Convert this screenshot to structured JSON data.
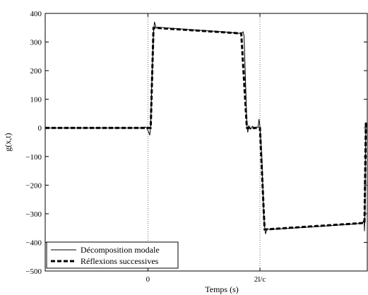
{
  "chart_data": {
    "type": "line",
    "xlabel": "Temps (s)",
    "ylabel": "g(x,t)",
    "ylim": [
      -500,
      400
    ],
    "xlim": [
      -1.1,
      2.35
    ],
    "y_ticks": [
      400,
      300,
      200,
      100,
      0,
      -100,
      -200,
      -300,
      -400,
      -500
    ],
    "y_tick_labels": [
      "400",
      "300",
      "200",
      "100",
      "0",
      "−100",
      "−200",
      "−300",
      "−400",
      "−500"
    ],
    "x_ticks": [
      {
        "value": 0,
        "label": "0"
      },
      {
        "value": 1.2,
        "label": "2l/c"
      }
    ],
    "vertical_dotted_lines_at": [
      0,
      1.2
    ],
    "grid": false,
    "legend_position": "bottom-left",
    "series": [
      {
        "name": "Décomposition modale",
        "style": "solid",
        "color": "#000000",
        "points": [
          [
            -1.1,
            0
          ],
          [
            -0.5,
            0
          ],
          [
            -0.05,
            0
          ],
          [
            -0.02,
            3
          ],
          [
            0.0,
            -8
          ],
          [
            0.02,
            -25
          ],
          [
            0.03,
            5
          ],
          [
            0.04,
            140
          ],
          [
            0.06,
            330
          ],
          [
            0.07,
            370
          ],
          [
            0.08,
            360
          ],
          [
            0.09,
            348
          ],
          [
            0.1,
            352
          ],
          [
            0.5,
            342
          ],
          [
            0.8,
            336
          ],
          [
            1.0,
            330
          ],
          [
            1.02,
            336
          ],
          [
            1.03,
            320
          ],
          [
            1.05,
            120
          ],
          [
            1.06,
            10
          ],
          [
            1.07,
            -15
          ],
          [
            1.08,
            8
          ],
          [
            1.1,
            -5
          ],
          [
            1.12,
            6
          ],
          [
            1.14,
            -4
          ],
          [
            1.16,
            3
          ],
          [
            1.18,
            2
          ],
          [
            1.19,
            30
          ],
          [
            1.2,
            5
          ],
          [
            1.22,
            -100
          ],
          [
            1.24,
            -300
          ],
          [
            1.25,
            -345
          ],
          [
            1.26,
            -370
          ],
          [
            1.27,
            -360
          ],
          [
            1.28,
            -352
          ],
          [
            1.3,
            -355
          ],
          [
            1.8,
            -345
          ],
          [
            2.2,
            -336
          ],
          [
            2.3,
            -333
          ],
          [
            2.315,
            -320
          ],
          [
            2.32,
            -360
          ],
          [
            2.325,
            -300
          ],
          [
            2.33,
            -100
          ],
          [
            2.335,
            20
          ]
        ]
      },
      {
        "name": "Réflexions successives",
        "style": "dashed",
        "color": "#000000",
        "points": [
          [
            -1.1,
            0
          ],
          [
            0.03,
            0
          ],
          [
            0.06,
            350
          ],
          [
            1.0,
            330
          ],
          [
            1.06,
            0
          ],
          [
            1.2,
            0
          ],
          [
            1.25,
            -355
          ],
          [
            2.32,
            -332
          ],
          [
            2.335,
            20
          ]
        ]
      }
    ]
  }
}
